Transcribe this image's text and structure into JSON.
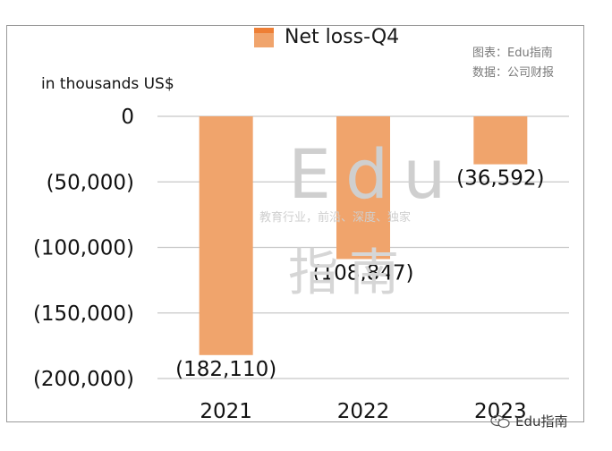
{
  "chart_data": {
    "type": "bar",
    "categories": [
      "2021",
      "2022",
      "2023"
    ],
    "series": [
      {
        "name": "Net loss-Q4",
        "values": [
          -182110,
          -108847,
          -36592
        ]
      }
    ],
    "data_labels": [
      "(182,110)",
      "(108,847)",
      "(36,592)"
    ],
    "y_tick_labels": [
      "0",
      "(50,000)",
      "(100,000)",
      "(150,000)",
      "(200,000)"
    ],
    "ylim": [
      -200000,
      0
    ],
    "ylabel": "in thousands US$",
    "grid": true,
    "legend_position": "top-center",
    "colors": {
      "bar": "#f0a46c",
      "legend_edge": "#ee7f35",
      "grid": "#c8c8c8"
    }
  },
  "source": {
    "line1": "图表：Edu指南",
    "line2": "数据：公司财报"
  },
  "watermark": {
    "big": "Edu",
    "tagline": "教育行业，前沿、深度、独家",
    "cn": "指南"
  },
  "brand": {
    "text": "Edu指南",
    "icon": "wechat-icon"
  }
}
